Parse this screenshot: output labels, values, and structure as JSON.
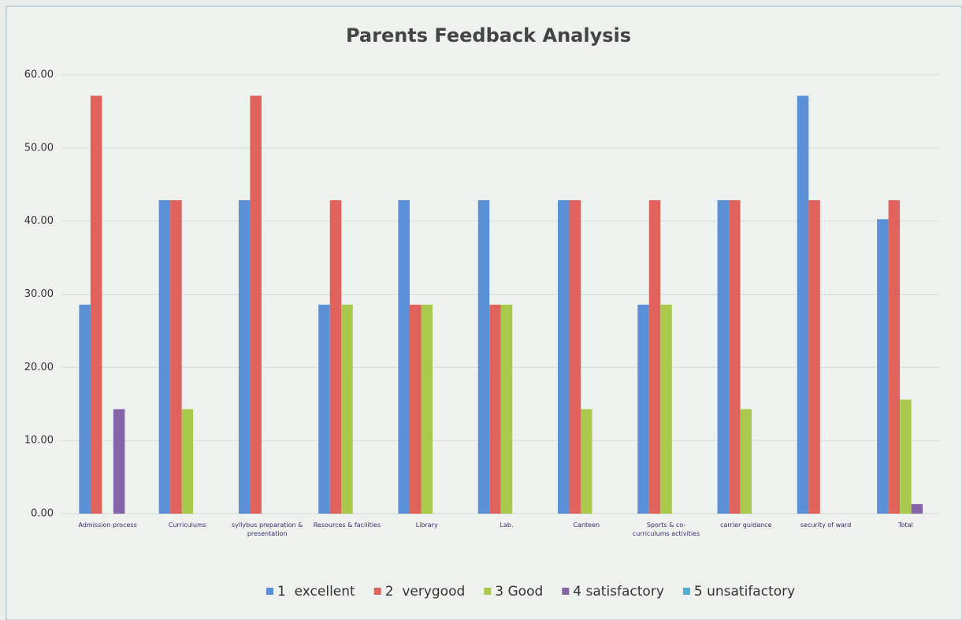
{
  "chart_data": {
    "type": "bar",
    "title": "Parents Feedback Analysis",
    "categories": [
      "Admission process",
      "Curriculums",
      "syllybus preparation & presentation",
      "Resources & facilities",
      "Library",
      "Lab.",
      "Canteen",
      "Sports & co-curriculums activities",
      "carrier guidance",
      "security of ward",
      "Total"
    ],
    "series": [
      {
        "name": "1  excellent",
        "color": "#5b8fd6",
        "values": [
          28.57,
          42.86,
          42.86,
          28.57,
          42.86,
          42.86,
          42.86,
          28.57,
          42.86,
          57.14,
          40.26
        ]
      },
      {
        "name": "2  verygood",
        "color": "#e0625c",
        "values": [
          57.14,
          42.86,
          57.14,
          42.86,
          28.57,
          28.57,
          42.86,
          42.86,
          42.86,
          42.86,
          42.86
        ]
      },
      {
        "name": "3 Good",
        "color": "#a9c84c",
        "values": [
          0,
          14.29,
          0,
          28.57,
          28.57,
          28.57,
          14.29,
          28.57,
          14.29,
          0,
          15.58
        ]
      },
      {
        "name": "4 satisfactory",
        "color": "#8466a8",
        "values": [
          14.29,
          0,
          0,
          0,
          0,
          0,
          0,
          0,
          0,
          0,
          1.3
        ]
      },
      {
        "name": "5 unsatifactory",
        "color": "#4fb0cb",
        "values": [
          0,
          0,
          0,
          0,
          0,
          0,
          0,
          0,
          0,
          0,
          0
        ]
      }
    ],
    "ylim": [
      0,
      60
    ],
    "yticks": [
      {
        "value": 0,
        "label": "0.00"
      },
      {
        "value": 10,
        "label": "10.00"
      },
      {
        "value": 20,
        "label": "20.00"
      },
      {
        "value": 30,
        "label": "30.00"
      },
      {
        "value": 40,
        "label": "40.00"
      },
      {
        "value": 50,
        "label": "50.00"
      },
      {
        "value": 60,
        "label": "60.00"
      }
    ],
    "grid": true,
    "legend": "bottom"
  }
}
